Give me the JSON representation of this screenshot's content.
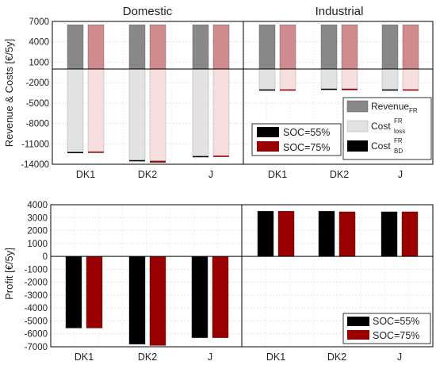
{
  "chart_data": [
    {
      "type": "bar",
      "panels": [
        {
          "title": "Domestic",
          "categories": [
            "DK1",
            "DK2",
            "J"
          ]
        },
        {
          "title": "Industrial",
          "categories": [
            "DK1",
            "DK2",
            "J"
          ]
        }
      ],
      "ylabel": "Revenue & Costs [€/5y]",
      "ylim": [
        -14000,
        7000
      ],
      "yticks": [
        7000,
        4000,
        1000,
        -2000,
        -5000,
        -8000,
        -11000,
        -14000
      ],
      "yticks_labels": [
        "7000",
        "4000",
        "1000",
        "-2000",
        "-5000",
        "-8000",
        "-11000",
        "-14000"
      ],
      "grid": true,
      "series": [
        {
          "name": "SOC=55%",
          "revenue": [
            6500,
            6500,
            6500,
            6500,
            6500,
            6500
          ],
          "cost_loss": [
            -12200,
            -13400,
            -12800,
            -3000,
            -2900,
            -3000
          ],
          "cost_bd": [
            -150,
            -150,
            -150,
            -120,
            -140,
            -130
          ]
        },
        {
          "name": "SOC=75%",
          "revenue": [
            6500,
            6500,
            6500,
            6500,
            6500,
            6500
          ],
          "cost_loss": [
            -12150,
            -13500,
            -12750,
            -3000,
            -2900,
            -3000
          ],
          "cost_bd": [
            -150,
            -250,
            -150,
            -130,
            -200,
            -140
          ]
        }
      ],
      "legend_soc": [
        {
          "label": "SOC=55%",
          "color": "#000000"
        },
        {
          "label": "SOC=75%",
          "color": "#9b0000"
        }
      ],
      "legend_components": [
        {
          "main": "Revenue",
          "sup": "",
          "sub": "FR",
          "color": "#888888"
        },
        {
          "main": "Cost",
          "sup": "FR",
          "sub": "loss",
          "color": "#e2e2e2"
        },
        {
          "main": "Cost",
          "sup": "FR",
          "sub": "BD",
          "color": "#000000"
        }
      ],
      "legend_components_placement": "right",
      "legend_soc_placement": "center-right"
    },
    {
      "type": "bar",
      "categories": [
        "DK1",
        "DK2",
        "J",
        "DK1",
        "DK2",
        "J"
      ],
      "ylabel": "Profit [€/5y]",
      "ylim": [
        -7000,
        4000
      ],
      "yticks": [
        4000,
        3000,
        2000,
        1000,
        0,
        -1000,
        -2000,
        -3000,
        -4000,
        -5000,
        -6000,
        -7000
      ],
      "yticks_labels": [
        "4000",
        "3000",
        "2000",
        "1000",
        "0",
        "-1000",
        "-2000",
        "-3000",
        "-4000",
        "-5000",
        "-6000",
        "-7000"
      ],
      "grid": true,
      "series": [
        {
          "name": "SOC=55%",
          "color": "#000000",
          "values": [
            -5550,
            -6800,
            -6300,
            3500,
            3500,
            3450
          ]
        },
        {
          "name": "SOC=75%",
          "color": "#9b0000",
          "values": [
            -5550,
            -6900,
            -6300,
            3500,
            3450,
            3450
          ]
        }
      ],
      "legend_placement": "bottom-right"
    }
  ],
  "colors": {
    "revenue_a": "#888888",
    "revenue_b": "#cf8b8d",
    "loss_a": "#e2e2e2",
    "loss_b": "#f7dede",
    "bd_a": "#000000",
    "bd_b": "#8b0000",
    "profit_a": "#000000",
    "profit_b": "#9b0000"
  }
}
